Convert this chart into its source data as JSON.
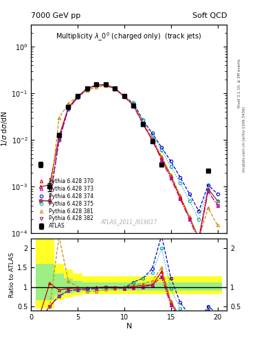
{
  "title_left": "7000 GeV pp",
  "title_right": "Soft QCD",
  "plot_title": "Multiplicity $\\lambda\\_0^0$ (charged only)  (track jets)",
  "ylabel_main": "1/$\\sigma$ d$\\sigma$/dN",
  "ylabel_ratio": "Ratio to ATLAS",
  "xlabel": "N",
  "watermark": "ATLAS_2011_I919017",
  "right_label": "mcplots.cern.ch [arXiv:1306.3436]",
  "right_label2": "Rivet 3.1.10, ≥ 3M events",
  "atlas_x": [
    1,
    2,
    3,
    4,
    5,
    6,
    7,
    8,
    9,
    10,
    11,
    12,
    13,
    14,
    19
  ],
  "atlas_y": [
    0.003,
    0.001,
    0.013,
    0.052,
    0.088,
    0.13,
    0.155,
    0.155,
    0.13,
    0.088,
    0.055,
    0.022,
    0.0095,
    0.003,
    0.0022
  ],
  "atlas_yerr": [
    0.0004,
    0.0002,
    0.0012,
    0.004,
    0.006,
    0.008,
    0.008,
    0.008,
    0.007,
    0.006,
    0.004,
    0.002,
    0.0008,
    0.0003,
    0.0002
  ],
  "mc_x": [
    1,
    2,
    3,
    4,
    5,
    6,
    7,
    8,
    9,
    10,
    11,
    12,
    13,
    14,
    15,
    16,
    17,
    18,
    19,
    20
  ],
  "p370_y": [
    0.001,
    0.0011,
    0.012,
    0.05,
    0.086,
    0.128,
    0.153,
    0.155,
    0.13,
    0.087,
    0.056,
    0.023,
    0.01,
    0.0042,
    0.0017,
    0.0006,
    0.00022,
    8e-05,
    0.0009,
    0.0005
  ],
  "p373_y": [
    0.0005,
    0.0005,
    0.01,
    0.047,
    0.082,
    0.124,
    0.15,
    0.153,
    0.128,
    0.085,
    0.054,
    0.022,
    0.01,
    0.0038,
    0.0015,
    0.00055,
    0.0002,
    7e-05,
    0.0008,
    0.0004
  ],
  "p374_y": [
    0.0005,
    0.0005,
    0.01,
    0.047,
    0.082,
    0.124,
    0.15,
    0.153,
    0.128,
    0.085,
    0.062,
    0.027,
    0.014,
    0.007,
    0.0035,
    0.0016,
    0.0007,
    0.0003,
    0.0011,
    0.0007
  ],
  "p375_y": [
    0.0005,
    0.0005,
    0.01,
    0.047,
    0.082,
    0.12,
    0.148,
    0.152,
    0.128,
    0.088,
    0.062,
    0.027,
    0.013,
    0.006,
    0.0027,
    0.0012,
    0.0005,
    0.0002,
    0.0009,
    0.0005
  ],
  "p381_y": [
    0.0005,
    0.0005,
    0.03,
    0.06,
    0.088,
    0.115,
    0.138,
    0.145,
    0.125,
    0.088,
    0.058,
    0.024,
    0.011,
    0.0045,
    0.0018,
    0.00065,
    0.00023,
    8e-05,
    0.00035,
    0.00015
  ],
  "p382_y": [
    0.0005,
    0.0005,
    0.01,
    0.047,
    0.082,
    0.124,
    0.15,
    0.153,
    0.128,
    0.085,
    0.054,
    0.022,
    0.01,
    0.0038,
    0.0015,
    0.00055,
    0.0002,
    7e-05,
    0.0008,
    0.0004
  ],
  "series": [
    {
      "label": "Pythia 6.428 370",
      "color": "#cc0000",
      "marker": "^",
      "linestyle": "-",
      "mfc": "none",
      "key": "p370_y"
    },
    {
      "label": "Pythia 6.428 373",
      "color": "#aa00cc",
      "marker": "^",
      "linestyle": ":",
      "mfc": "none",
      "key": "p373_y"
    },
    {
      "label": "Pythia 6.428 374",
      "color": "#0000cc",
      "marker": "o",
      "linestyle": "--",
      "mfc": "none",
      "key": "p374_y"
    },
    {
      "label": "Pythia 6.428 375",
      "color": "#00aaaa",
      "marker": "o",
      "linestyle": ":",
      "mfc": "none",
      "key": "p375_y"
    },
    {
      "label": "Pythia 6.428 381",
      "color": "#cc8800",
      "marker": "^",
      "linestyle": "--",
      "mfc": "none",
      "key": "p381_y"
    },
    {
      "label": "Pythia 6.428 382",
      "color": "#cc0066",
      "marker": "v",
      "linestyle": "-.",
      "mfc": "none",
      "key": "p382_y"
    }
  ],
  "ylim_main": [
    0.0001,
    3.0
  ],
  "ylim_ratio": [
    0.39,
    2.25
  ],
  "xlim": [
    0,
    21
  ],
  "xticks": [
    0,
    5,
    10,
    15,
    20
  ],
  "yticks_ratio": [
    0.5,
    1.0,
    1.5,
    2.0
  ],
  "band_x": [
    0.5,
    1.5,
    2.5,
    3.5,
    4.5,
    5.5,
    6.5,
    7.5,
    8.5,
    9.5,
    10.5,
    11.5,
    12.5,
    13.5,
    14.5,
    20.5
  ],
  "band_yellow_lo": [
    0.45,
    0.45,
    0.65,
    0.72,
    0.78,
    0.82,
    0.82,
    0.82,
    0.82,
    0.82,
    0.82,
    0.82,
    0.82,
    0.82,
    0.82,
    0.82
  ],
  "band_yellow_hi": [
    2.25,
    2.25,
    1.6,
    1.45,
    1.35,
    1.28,
    1.28,
    1.28,
    1.28,
    1.28,
    1.28,
    1.28,
    1.28,
    1.28,
    1.28,
    1.28
  ],
  "band_green_lo": [
    0.65,
    0.65,
    0.78,
    0.83,
    0.87,
    0.9,
    0.9,
    0.9,
    0.9,
    0.9,
    0.9,
    0.9,
    0.9,
    0.9,
    0.9,
    0.9
  ],
  "band_green_hi": [
    1.6,
    1.6,
    1.35,
    1.22,
    1.16,
    1.12,
    1.12,
    1.12,
    1.12,
    1.12,
    1.12,
    1.12,
    1.12,
    1.12,
    1.12,
    1.12
  ],
  "background_color": "#ffffff"
}
